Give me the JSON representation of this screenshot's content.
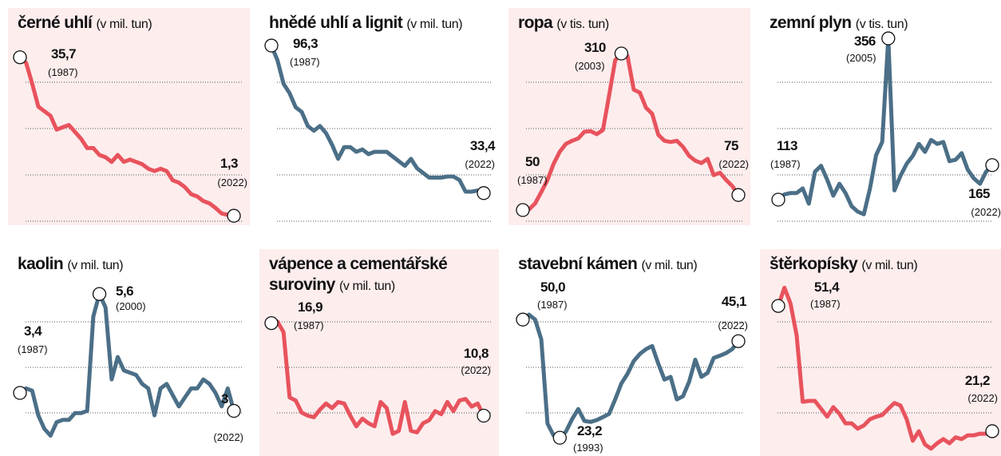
{
  "chart_data": [
    {
      "type": "line",
      "title": "černé uhlí",
      "subtitle": "(v mil. tun)",
      "color": "#e8535d",
      "background": "#fdeded",
      "x": [
        1987,
        1988,
        1989,
        1990,
        1991,
        1992,
        1993,
        1994,
        1995,
        1996,
        1997,
        1998,
        1999,
        2000,
        2001,
        2002,
        2003,
        2004,
        2005,
        2006,
        2007,
        2008,
        2009,
        2010,
        2011,
        2012,
        2013,
        2014,
        2015,
        2016,
        2017,
        2018,
        2019,
        2020,
        2021,
        2022
      ],
      "values": [
        35.7,
        34.5,
        30,
        25,
        24,
        23,
        20,
        20.5,
        21,
        19.5,
        18,
        16,
        16,
        14.5,
        14,
        13,
        14.5,
        13,
        13.5,
        13,
        12.5,
        11.5,
        11,
        11.5,
        11,
        9,
        8.5,
        7.5,
        6,
        5.5,
        4.5,
        4,
        3,
        1.8,
        1.5,
        1.3
      ],
      "ylim": [
        -0.4,
        41.2
      ],
      "annotations": [
        {
          "x": 1987,
          "label": "35,7",
          "note": "(1987)"
        },
        {
          "x": 2022,
          "label": "1,3",
          "note": "(2022)"
        }
      ]
    },
    {
      "type": "line",
      "title": "hnědé uhlí a lignit",
      "subtitle": "(v mil. tun)",
      "color": "#4b6f87",
      "x": [
        1987,
        1988,
        1989,
        1990,
        1991,
        1992,
        1993,
        1994,
        1995,
        1996,
        1997,
        1998,
        1999,
        2000,
        2001,
        2002,
        2003,
        2004,
        2005,
        2006,
        2007,
        2008,
        2009,
        2010,
        2011,
        2012,
        2013,
        2014,
        2015,
        2016,
        2017,
        2018,
        2019,
        2020,
        2021,
        2022
      ],
      "values": [
        96.3,
        90,
        80,
        76,
        70,
        68,
        62,
        60,
        62,
        59,
        54,
        48,
        53,
        53,
        51,
        52,
        50,
        51,
        51,
        51,
        49,
        47,
        45,
        48,
        44,
        42,
        40,
        40,
        40,
        40.5,
        40.5,
        39,
        34,
        34,
        34.5,
        33.4
      ],
      "ylim": [
        20.4,
        102.1
      ],
      "annotations": [
        {
          "x": 1987,
          "label": "96,3",
          "note": "(1987)"
        },
        {
          "x": 2022,
          "label": "33,4",
          "note": "(2022)"
        }
      ]
    },
    {
      "type": "line",
      "title": "ropa",
      "subtitle": "(v tis. tun)",
      "color": "#e8535d",
      "background": "#fdeded",
      "x": [
        1987,
        1988,
        1989,
        1990,
        1991,
        1992,
        1993,
        1994,
        1995,
        1996,
        1997,
        1998,
        1999,
        2000,
        2001,
        2002,
        2003,
        2004,
        2005,
        2006,
        2007,
        2008,
        2009,
        2010,
        2011,
        2012,
        2013,
        2014,
        2015,
        2016,
        2017,
        2018,
        2019,
        2020,
        2021,
        2022
      ],
      "values": [
        50,
        51,
        61,
        80,
        100,
        127,
        147,
        160,
        165,
        169,
        180,
        181,
        176,
        183,
        240,
        299,
        310,
        306,
        250,
        245,
        220,
        210,
        175,
        165,
        163,
        165,
        155,
        140,
        132,
        128,
        135,
        108,
        112,
        100,
        90,
        75
      ],
      "ylim": [
        27.5,
        345.8
      ],
      "annotations": [
        {
          "x": 1987,
          "label": "50",
          "note": "(1987)"
        },
        {
          "x": 2003,
          "label": "310",
          "note": "(2003)"
        },
        {
          "x": 2022,
          "label": "75",
          "note": "(2022)"
        }
      ]
    },
    {
      "type": "line",
      "title": "zemní plyn",
      "subtitle": "(v tis. tun)",
      "color": "#4b6f87",
      "x": [
        1987,
        1988,
        1989,
        1990,
        1991,
        1992,
        1993,
        1994,
        1995,
        1996,
        1997,
        1998,
        1999,
        2000,
        2001,
        2002,
        2003,
        2004,
        2005,
        2006,
        2007,
        2008,
        2009,
        2010,
        2011,
        2012,
        2013,
        2014,
        2015,
        2016,
        2017,
        2018,
        2019,
        2020,
        2021,
        2022
      ],
      "values": [
        113,
        121,
        123,
        123,
        130,
        107,
        155,
        164,
        143,
        119,
        137,
        123,
        103,
        95,
        91,
        130,
        180,
        200,
        356,
        127,
        149,
        167,
        179,
        197,
        185,
        203,
        197,
        200,
        171,
        173,
        183,
        158,
        145,
        137,
        155,
        165
      ],
      "ylim": [
        76.9,
        365.7
      ],
      "annotations": [
        {
          "x": 1987,
          "label": "113",
          "note": "(1987)"
        },
        {
          "x": 2005,
          "label": "356",
          "note": "(2005)"
        },
        {
          "x": 2022,
          "label": "165",
          "note": "(2022)"
        }
      ]
    },
    {
      "type": "line",
      "title": "kaolin",
      "subtitle": "(v mil. tun)",
      "color": "#4b6f87",
      "x": [
        1987,
        1988,
        1989,
        1990,
        1991,
        1992,
        1993,
        1994,
        1995,
        1996,
        1997,
        1998,
        1999,
        2000,
        2001,
        2002,
        2003,
        2004,
        2005,
        2006,
        2007,
        2008,
        2009,
        2010,
        2011,
        2012,
        2013,
        2014,
        2015,
        2016,
        2017,
        2018,
        2019,
        2020,
        2021,
        2022
      ],
      "values": [
        3.4,
        3.5,
        3.45,
        2.9,
        2.6,
        2.45,
        2.75,
        2.8,
        2.8,
        2.95,
        2.95,
        3.0,
        5.1,
        5.6,
        5.3,
        3.7,
        4.2,
        3.9,
        3.85,
        3.8,
        3.6,
        3.5,
        2.9,
        3.5,
        3.6,
        3.35,
        3.1,
        3.3,
        3.5,
        3.5,
        3.7,
        3.6,
        3.4,
        3.1,
        3.5,
        3
      ],
      "ylim": [
        2.05,
        6.1
      ],
      "annotations": [
        {
          "x": 1987,
          "label": "3,4",
          "note": "(1987)"
        },
        {
          "x": 2000,
          "label": "5,6",
          "note": "(2000)"
        },
        {
          "x": 2022,
          "label": "3",
          "note": "(2022)"
        }
      ]
    },
    {
      "type": "line",
      "title": "vápence a cementářské suroviny",
      "subtitle": "(v mil. tun)",
      "color": "#e8535d",
      "background": "#fdeded",
      "x": [
        1987,
        1988,
        1989,
        1990,
        1991,
        1992,
        1993,
        1994,
        1995,
        1996,
        1997,
        1998,
        1999,
        2000,
        2001,
        2002,
        2003,
        2004,
        2005,
        2006,
        2007,
        2008,
        2009,
        2010,
        2011,
        2012,
        2013,
        2014,
        2015,
        2016,
        2017,
        2018,
        2019,
        2020,
        2021,
        2022
      ],
      "values": [
        16.9,
        17.0,
        16.3,
        12.0,
        11.8,
        11.0,
        10.8,
        10.7,
        11.2,
        11.6,
        11.3,
        11.7,
        11.6,
        10.8,
        10.1,
        10.6,
        10.3,
        10.1,
        11.7,
        11.3,
        9.6,
        9.8,
        11.7,
        9.8,
        9.7,
        10.3,
        10.5,
        11.1,
        10.9,
        11.7,
        11.1,
        11.8,
        11.9,
        11.4,
        11.6,
        10.8
      ],
      "ylim": [
        8.3,
        20.3
      ],
      "annotations": [
        {
          "x": 1987,
          "label": "16,9",
          "note": "(1987)"
        },
        {
          "x": 2022,
          "label": "10,8",
          "note": "(2022)"
        }
      ]
    },
    {
      "type": "line",
      "title": "stavební kámen",
      "subtitle": "(v mil. tun)",
      "color": "#4b6f87",
      "x": [
        1987,
        1988,
        1989,
        1990,
        1991,
        1992,
        1993,
        1994,
        1995,
        1996,
        1997,
        1998,
        1999,
        2000,
        2001,
        2002,
        2003,
        2004,
        2005,
        2006,
        2007,
        2008,
        2009,
        2010,
        2011,
        2012,
        2013,
        2014,
        2015,
        2016,
        2017,
        2018,
        2019,
        2020,
        2021,
        2022
      ],
      "values": [
        50,
        51.1,
        50,
        45.5,
        26.4,
        23.7,
        23.2,
        24.6,
        27.4,
        29.7,
        27,
        26.8,
        27.2,
        27.9,
        28.6,
        31.9,
        35.5,
        37.7,
        40.6,
        42.2,
        43.3,
        44,
        40,
        36.4,
        37,
        31.9,
        32.6,
        35.9,
        40.9,
        37,
        37.9,
        41.3,
        41.8,
        42.4,
        43.3,
        45.1
      ],
      "ylim": [
        19.6,
        60.9
      ],
      "annotations": [
        {
          "x": 1987,
          "label": "50,0",
          "note": "(1987)"
        },
        {
          "x": 1993,
          "label": "23,2",
          "note": "(1993)"
        },
        {
          "x": 2022,
          "label": "45,1",
          "note": "(2022)"
        }
      ]
    },
    {
      "type": "line",
      "title": "štěrkopísky",
      "subtitle": "(v mil. tun)",
      "color": "#e8535d",
      "background": "#fdeded",
      "x": [
        1987,
        1988,
        1989,
        1990,
        1991,
        1992,
        1993,
        1994,
        1995,
        1996,
        1997,
        1998,
        1999,
        2000,
        2001,
        2002,
        2003,
        2004,
        2005,
        2006,
        2007,
        2008,
        2009,
        2010,
        2011,
        2012,
        2013,
        2014,
        2015,
        2016,
        2017,
        2018,
        2019,
        2020,
        2021,
        2022
      ],
      "values": [
        51.4,
        55.8,
        52,
        44.3,
        28.3,
        28.5,
        28.5,
        26.6,
        24.7,
        27,
        25.4,
        23.1,
        23.1,
        21.8,
        22.6,
        24.1,
        24.7,
        25.1,
        26.6,
        28,
        27.4,
        24.1,
        18.9,
        21.2,
        18,
        17,
        18.3,
        19.3,
        18.3,
        19.7,
        19.3,
        20.2,
        20.2,
        20.6,
        20.6,
        21.2
      ],
      "ylim": [
        15.8,
        59.7
      ],
      "annotations": [
        {
          "x": 1987,
          "label": "51,4",
          "note": "(1987)"
        },
        {
          "x": 2022,
          "label": "21,2",
          "note": "(2022)"
        }
      ]
    }
  ]
}
